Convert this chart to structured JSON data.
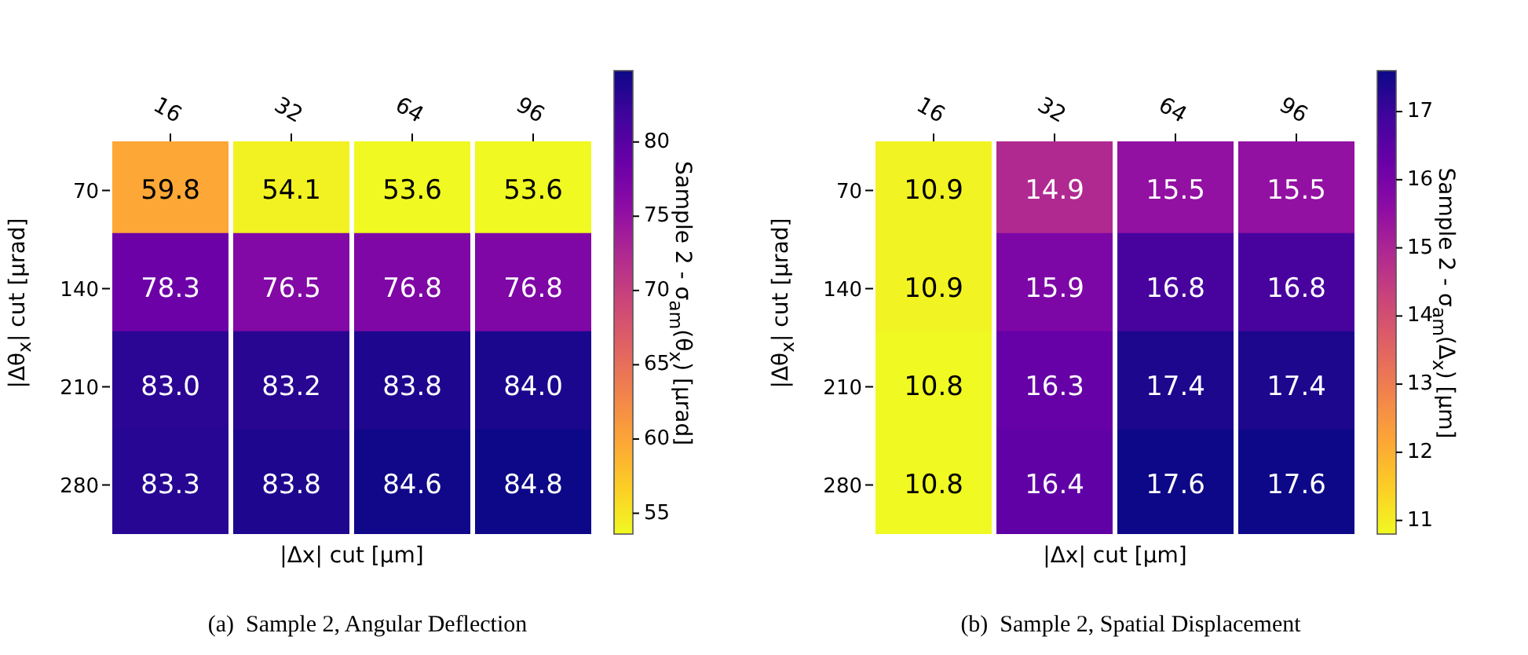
{
  "chart_data": [
    {
      "type": "heatmap",
      "categories": [
        "16",
        "32",
        "64",
        "96"
      ],
      "y_categories": [
        "70",
        "140",
        "210",
        "280"
      ],
      "cells": [
        [
          59.8,
          54.1,
          53.6,
          53.6
        ],
        [
          78.3,
          76.5,
          76.8,
          76.8
        ],
        [
          83.0,
          83.2,
          83.8,
          84.0
        ],
        [
          83.3,
          83.8,
          84.6,
          84.8
        ]
      ],
      "cell_labels": [
        [
          "59.8",
          "54.1",
          "53.6",
          "53.6"
        ],
        [
          "78.3",
          "76.5",
          "76.8",
          "76.8"
        ],
        [
          "83.0",
          "83.2",
          "83.8",
          "84.0"
        ],
        [
          "83.3",
          "83.8",
          "84.6",
          "84.8"
        ]
      ],
      "clim": [
        53.6,
        84.8
      ],
      "cticks": [
        55,
        60,
        65,
        70,
        75,
        80
      ],
      "xlabel": "|Δx| cut [μm]",
      "ylabel": "|Δθ$_{x}$| cut [μrad]",
      "clabel": "Sample 2 - σ$_{am}$(θ$_{x}$) [μrad]",
      "annotations": [
        "(a)  Sample 2, Angular Deflection"
      ]
    },
    {
      "type": "heatmap",
      "categories": [
        "16",
        "32",
        "64",
        "96"
      ],
      "y_categories": [
        "70",
        "140",
        "210",
        "280"
      ],
      "cells": [
        [
          10.9,
          14.9,
          15.5,
          15.5
        ],
        [
          10.9,
          15.9,
          16.8,
          16.8
        ],
        [
          10.8,
          16.3,
          17.4,
          17.4
        ],
        [
          10.8,
          16.4,
          17.6,
          17.6
        ]
      ],
      "cell_labels": [
        [
          "10.9",
          "14.9",
          "15.5",
          "15.5"
        ],
        [
          "10.9",
          "15.9",
          "16.8",
          "16.8"
        ],
        [
          "10.8",
          "16.3",
          "17.4",
          "17.4"
        ],
        [
          "10.8",
          "16.4",
          "17.6",
          "17.6"
        ]
      ],
      "clim": [
        10.8,
        17.6
      ],
      "cticks": [
        11,
        12,
        13,
        14,
        15,
        16,
        17
      ],
      "xlabel": "|Δx| cut [μm]",
      "ylabel": "|Δθ$_{x}$| cut [μrad]",
      "clabel": "Sample 2 - σ$_{am}$(Δ$_{x}$) [μm]",
      "annotations": [
        "(b)  Sample 2, Spatial Displacement"
      ]
    }
  ]
}
